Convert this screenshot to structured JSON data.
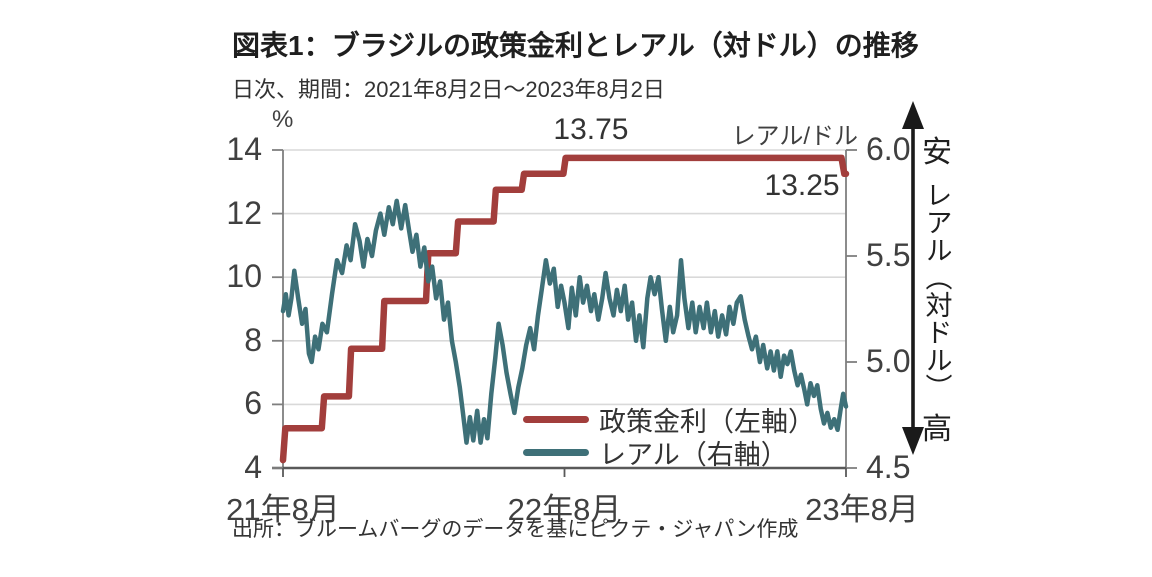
{
  "header": {
    "title": "図表1：ブラジルの政策金利とレアル（対ドル）の推移",
    "subtitle": "日次、期間：2021年8月2日～2023年8月2日"
  },
  "source_note": "出所：ブルームバーグのデータを基にピクテ・ジャパン作成",
  "side_annotation": {
    "top": "安",
    "middle": "レアル（対ドル）",
    "bottom": "高"
  },
  "chart_data": {
    "type": "line",
    "title": "図表1：ブラジルの政策金利とレアル（対ドル）の推移",
    "subtitle": "日次、期間：2021年8月2日～2023年8月2日",
    "x_axis": {
      "ticks": [
        {
          "label": "21年8月",
          "t": 0
        },
        {
          "label": "22年8月",
          "t": 0.5
        },
        {
          "label": "23年8月",
          "t": 1,
          "dx": 16
        }
      ]
    },
    "left_axis": {
      "unit": "%",
      "min": 4,
      "max": 14,
      "ticks": [
        {
          "label": "14",
          "value": 14
        },
        {
          "label": "12",
          "value": 12
        },
        {
          "label": "10",
          "value": 10
        },
        {
          "label": "8",
          "value": 8
        },
        {
          "label": "6",
          "value": 6
        },
        {
          "label": "4",
          "value": 4
        }
      ]
    },
    "right_axis": {
      "unit": "レアル/ドル",
      "min": 4.5,
      "max": 6,
      "ticks": [
        {
          "label": "6.0",
          "value": 6
        },
        {
          "label": "5.5",
          "value": 5.5
        },
        {
          "label": "5.0",
          "value": 5
        },
        {
          "label": "4.5",
          "value": 4.5
        }
      ]
    },
    "annotations": [
      {
        "text": "13.75",
        "t": 0.547,
        "value": 14.63
      },
      {
        "text": "13.25",
        "t": 0.922,
        "value": 12.87
      }
    ],
    "colors": {
      "grid": "#D9D9D9",
      "axis": "#7F7F7F",
      "axis_bottom": "#595959",
      "text": "#404040",
      "arrow": "#1A1A1A"
    },
    "legend_position": "inside-bottom-right",
    "series": [
      {
        "name": "政策金利（左軸）",
        "axis": "left",
        "color": "#A23E3C",
        "width": 6.5,
        "points": [
          [
            0,
            4.25
          ],
          [
            0.004,
            5.25
          ],
          [
            0.069,
            5.25
          ],
          [
            0.073,
            6.25
          ],
          [
            0.117,
            6.25
          ],
          [
            0.121,
            7.75
          ],
          [
            0.176,
            7.75
          ],
          [
            0.18,
            9.25
          ],
          [
            0.254,
            9.25
          ],
          [
            0.258,
            10.75
          ],
          [
            0.307,
            10.75
          ],
          [
            0.311,
            11.75
          ],
          [
            0.374,
            11.75
          ],
          [
            0.378,
            12.75
          ],
          [
            0.424,
            12.75
          ],
          [
            0.428,
            13.25
          ],
          [
            0.498,
            13.25
          ],
          [
            0.502,
            13.75
          ],
          [
            0.992,
            13.75
          ],
          [
            0.997,
            13.25
          ],
          [
            1,
            13.25
          ]
        ]
      },
      {
        "name": "レアル（右軸）",
        "axis": "right",
        "color": "#3E7078",
        "width": 4.5,
        "points": [
          [
            0,
            5.24
          ],
          [
            0.005,
            5.32
          ],
          [
            0.01,
            5.22
          ],
          [
            0.015,
            5.3
          ],
          [
            0.02,
            5.43
          ],
          [
            0.027,
            5.3
          ],
          [
            0.034,
            5.18
          ],
          [
            0.04,
            5.25
          ],
          [
            0.046,
            5.04
          ],
          [
            0.051,
            5.0
          ],
          [
            0.057,
            5.12
          ],
          [
            0.063,
            5.06
          ],
          [
            0.07,
            5.18
          ],
          [
            0.078,
            5.14
          ],
          [
            0.087,
            5.32
          ],
          [
            0.096,
            5.48
          ],
          [
            0.105,
            5.42
          ],
          [
            0.113,
            5.55
          ],
          [
            0.12,
            5.48
          ],
          [
            0.128,
            5.65
          ],
          [
            0.136,
            5.57
          ],
          [
            0.143,
            5.45
          ],
          [
            0.15,
            5.58
          ],
          [
            0.158,
            5.5
          ],
          [
            0.165,
            5.62
          ],
          [
            0.173,
            5.7
          ],
          [
            0.18,
            5.6
          ],
          [
            0.188,
            5.73
          ],
          [
            0.195,
            5.65
          ],
          [
            0.202,
            5.76
          ],
          [
            0.21,
            5.63
          ],
          [
            0.217,
            5.74
          ],
          [
            0.224,
            5.62
          ],
          [
            0.23,
            5.52
          ],
          [
            0.237,
            5.6
          ],
          [
            0.244,
            5.45
          ],
          [
            0.251,
            5.54
          ],
          [
            0.258,
            5.38
          ],
          [
            0.265,
            5.45
          ],
          [
            0.272,
            5.3
          ],
          [
            0.279,
            5.38
          ],
          [
            0.286,
            5.2
          ],
          [
            0.293,
            5.28
          ],
          [
            0.3,
            5.1
          ],
          [
            0.307,
            5.0
          ],
          [
            0.314,
            4.88
          ],
          [
            0.32,
            4.75
          ],
          [
            0.326,
            4.62
          ],
          [
            0.332,
            4.74
          ],
          [
            0.338,
            4.63
          ],
          [
            0.345,
            4.77
          ],
          [
            0.351,
            4.62
          ],
          [
            0.357,
            4.73
          ],
          [
            0.363,
            4.64
          ],
          [
            0.37,
            4.85
          ],
          [
            0.377,
            5.02
          ],
          [
            0.383,
            5.18
          ],
          [
            0.39,
            5.08
          ],
          [
            0.397,
            4.95
          ],
          [
            0.404,
            4.85
          ],
          [
            0.411,
            4.76
          ],
          [
            0.418,
            4.88
          ],
          [
            0.425,
            4.97
          ],
          [
            0.432,
            5.08
          ],
          [
            0.439,
            5.16
          ],
          [
            0.446,
            5.06
          ],
          [
            0.453,
            5.22
          ],
          [
            0.46,
            5.35
          ],
          [
            0.467,
            5.48
          ],
          [
            0.474,
            5.37
          ],
          [
            0.481,
            5.44
          ],
          [
            0.488,
            5.26
          ],
          [
            0.494,
            5.36
          ],
          [
            0.5,
            5.28
          ],
          [
            0.507,
            5.16
          ],
          [
            0.513,
            5.35
          ],
          [
            0.52,
            5.22
          ],
          [
            0.527,
            5.4
          ],
          [
            0.533,
            5.28
          ],
          [
            0.54,
            5.36
          ],
          [
            0.547,
            5.24
          ],
          [
            0.553,
            5.32
          ],
          [
            0.56,
            5.2
          ],
          [
            0.567,
            5.3
          ],
          [
            0.573,
            5.42
          ],
          [
            0.58,
            5.3
          ],
          [
            0.587,
            5.22
          ],
          [
            0.593,
            5.34
          ],
          [
            0.6,
            5.24
          ],
          [
            0.607,
            5.36
          ],
          [
            0.613,
            5.2
          ],
          [
            0.62,
            5.28
          ],
          [
            0.627,
            5.1
          ],
          [
            0.633,
            5.22
          ],
          [
            0.64,
            5.07
          ],
          [
            0.647,
            5.3
          ],
          [
            0.653,
            5.4
          ],
          [
            0.66,
            5.32
          ],
          [
            0.667,
            5.4
          ],
          [
            0.673,
            5.25
          ],
          [
            0.68,
            5.1
          ],
          [
            0.687,
            5.26
          ],
          [
            0.693,
            5.14
          ],
          [
            0.7,
            5.22
          ],
          [
            0.707,
            5.48
          ],
          [
            0.713,
            5.3
          ],
          [
            0.72,
            5.16
          ],
          [
            0.727,
            5.28
          ],
          [
            0.733,
            5.14
          ],
          [
            0.74,
            5.26
          ],
          [
            0.747,
            5.16
          ],
          [
            0.753,
            5.28
          ],
          [
            0.76,
            5.14
          ],
          [
            0.767,
            5.24
          ],
          [
            0.773,
            5.12
          ],
          [
            0.78,
            5.22
          ],
          [
            0.787,
            5.13
          ],
          [
            0.793,
            5.26
          ],
          [
            0.8,
            5.18
          ],
          [
            0.806,
            5.28
          ],
          [
            0.813,
            5.31
          ],
          [
            0.82,
            5.2
          ],
          [
            0.827,
            5.12
          ],
          [
            0.833,
            5.06
          ],
          [
            0.84,
            5.12
          ],
          [
            0.847,
            5.0
          ],
          [
            0.853,
            5.08
          ],
          [
            0.86,
            4.97
          ],
          [
            0.866,
            5.05
          ],
          [
            0.872,
            4.96
          ],
          [
            0.878,
            5.05
          ],
          [
            0.884,
            4.93
          ],
          [
            0.89,
            5.03
          ],
          [
            0.896,
            4.99
          ],
          [
            0.902,
            5.05
          ],
          [
            0.908,
            4.96
          ],
          [
            0.914,
            4.89
          ],
          [
            0.92,
            4.94
          ],
          [
            0.926,
            4.87
          ],
          [
            0.931,
            4.8
          ],
          [
            0.937,
            4.9
          ],
          [
            0.943,
            4.84
          ],
          [
            0.949,
            4.89
          ],
          [
            0.955,
            4.78
          ],
          [
            0.961,
            4.71
          ],
          [
            0.967,
            4.76
          ],
          [
            0.973,
            4.69
          ],
          [
            0.979,
            4.73
          ],
          [
            0.985,
            4.68
          ],
          [
            0.99,
            4.77
          ],
          [
            0.995,
            4.85
          ],
          [
            1,
            4.79
          ]
        ]
      }
    ]
  }
}
